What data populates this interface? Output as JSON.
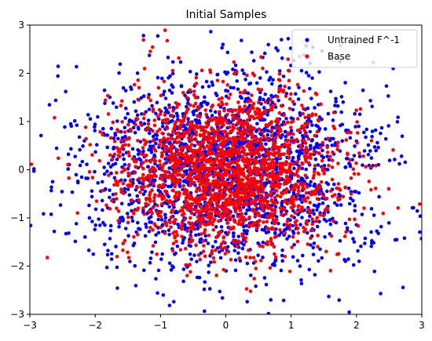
{
  "chart_data": {
    "type": "scatter",
    "title": "Initial Samples",
    "xlabel": "",
    "ylabel": "",
    "xlim": [
      -3,
      3
    ],
    "ylim": [
      -3,
      3
    ],
    "x_ticks": [
      -3,
      -2,
      -1,
      0,
      1,
      2,
      3
    ],
    "y_ticks": [
      -3,
      -2,
      -1,
      0,
      1,
      2,
      3
    ],
    "grid": false,
    "legend_position": "top-right",
    "series": [
      {
        "name": "Untrained F^-1",
        "color": "#0000ff",
        "n_points": 2000,
        "distribution": "approx. gaussian, mean ~(0,0), sd ~1.1, extending to lower-right"
      },
      {
        "name": "Base",
        "color": "#ff0000",
        "n_points": 2000,
        "distribution": "standard gaussian, mean (0,0), sd ~0.85"
      }
    ]
  }
}
